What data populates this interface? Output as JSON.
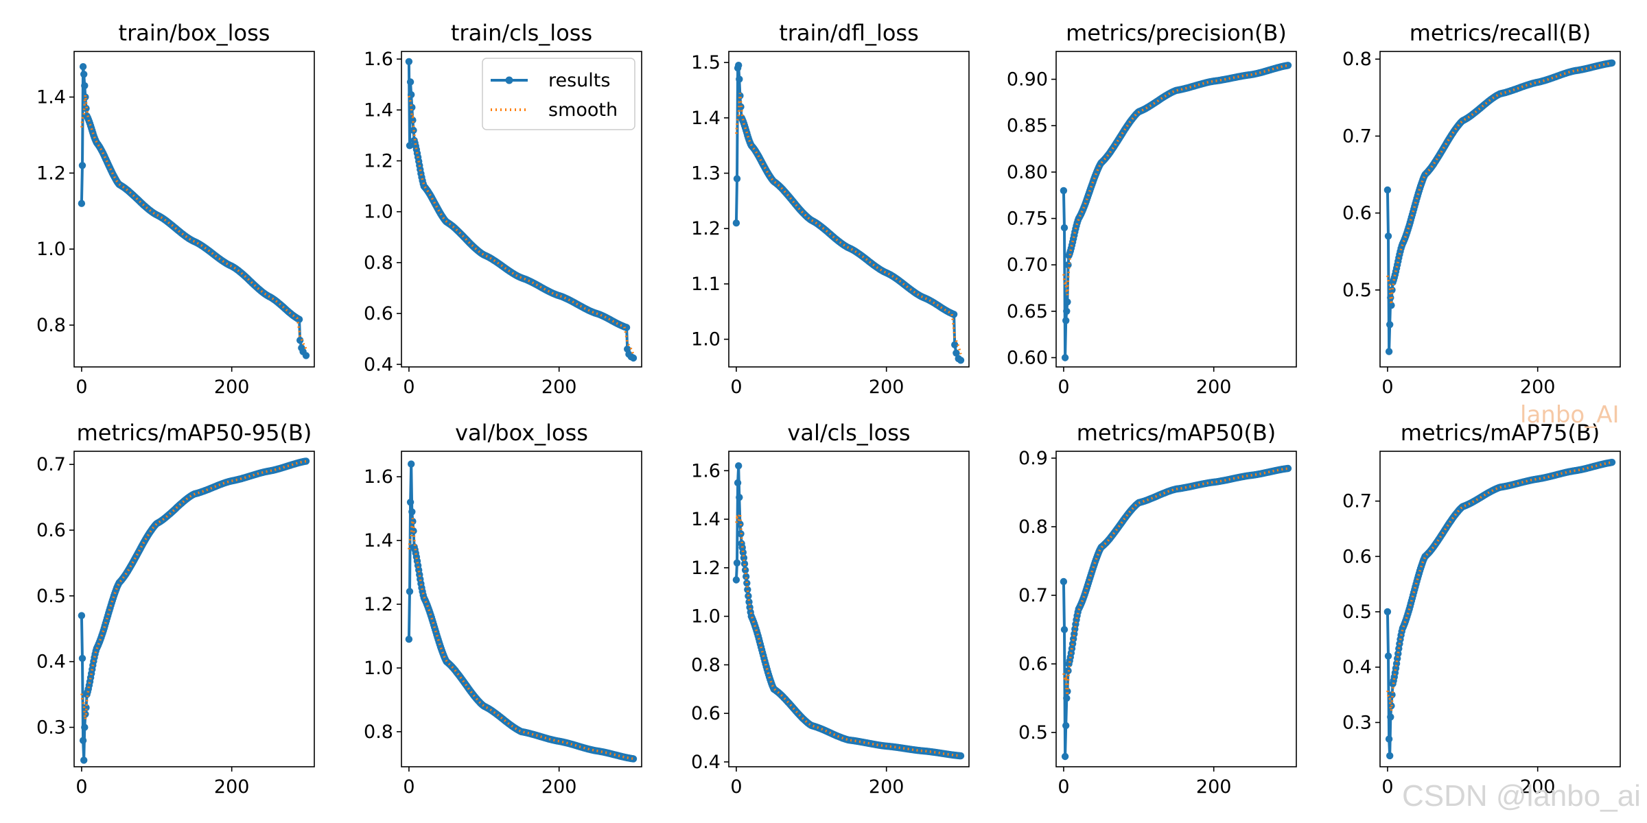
{
  "chart_data": [
    {
      "type": "line",
      "title": "train/box_loss",
      "x_label": "",
      "y_label": "",
      "xlim": [
        -10,
        310
      ],
      "ylim": [
        0.69,
        1.52
      ],
      "xticks": [
        0,
        200
      ],
      "yticks": [
        0.8,
        1.0,
        1.2,
        1.4
      ],
      "ytick_labels": [
        "0.8",
        "1.0",
        "1.2",
        "1.4"
      ],
      "epochs": 300,
      "start_values": [
        1.12,
        1.22,
        1.48,
        1.46,
        1.43,
        1.4,
        1.37,
        1.35
      ],
      "anchors": [
        [
          7,
          1.35
        ],
        [
          20,
          1.28
        ],
        [
          50,
          1.17
        ],
        [
          100,
          1.09
        ],
        [
          150,
          1.02
        ],
        [
          200,
          0.955
        ],
        [
          250,
          0.875
        ],
        [
          290,
          0.815
        ]
      ],
      "tail": [
        [
          291,
          0.76
        ],
        [
          293,
          0.74
        ],
        [
          295,
          0.73
        ],
        [
          299,
          0.72
        ]
      ]
    },
    {
      "type": "line",
      "title": "train/cls_loss",
      "x_label": "",
      "y_label": "",
      "xlim": [
        -10,
        310
      ],
      "ylim": [
        0.39,
        1.63
      ],
      "xticks": [
        0,
        200
      ],
      "yticks": [
        0.4,
        0.6,
        0.8,
        1.0,
        1.2,
        1.4,
        1.6
      ],
      "ytick_labels": [
        "0.4",
        "0.6",
        "0.8",
        "1.0",
        "1.2",
        "1.4",
        "1.6"
      ],
      "epochs": 300,
      "start_values": [
        1.59,
        1.26,
        1.51,
        1.46,
        1.41,
        1.36,
        1.32,
        1.28
      ],
      "anchors": [
        [
          7,
          1.28
        ],
        [
          20,
          1.1
        ],
        [
          50,
          0.96
        ],
        [
          100,
          0.83
        ],
        [
          150,
          0.74
        ],
        [
          200,
          0.67
        ],
        [
          250,
          0.6
        ],
        [
          290,
          0.545
        ]
      ],
      "tail": [
        [
          291,
          0.46
        ],
        [
          293,
          0.44
        ],
        [
          296,
          0.43
        ],
        [
          299,
          0.425
        ]
      ],
      "legend": [
        {
          "label": "results",
          "style": "solid-marker",
          "color": "#1f77b4"
        },
        {
          "label": "smooth",
          "style": "dotted",
          "color": "#ff7f0e"
        }
      ]
    },
    {
      "type": "line",
      "title": "train/dfl_loss",
      "x_label": "",
      "y_label": "",
      "xlim": [
        -10,
        310
      ],
      "ylim": [
        0.95,
        1.52
      ],
      "xticks": [
        0,
        200
      ],
      "yticks": [
        1.0,
        1.1,
        1.2,
        1.3,
        1.4,
        1.5
      ],
      "ytick_labels": [
        "1.0",
        "1.1",
        "1.2",
        "1.3",
        "1.4",
        "1.5"
      ],
      "epochs": 300,
      "start_values": [
        1.21,
        1.29,
        1.49,
        1.495,
        1.47,
        1.44,
        1.42,
        1.4
      ],
      "anchors": [
        [
          7,
          1.4
        ],
        [
          20,
          1.35
        ],
        [
          50,
          1.285
        ],
        [
          100,
          1.215
        ],
        [
          150,
          1.165
        ],
        [
          200,
          1.12
        ],
        [
          250,
          1.075
        ],
        [
          290,
          1.045
        ]
      ],
      "tail": [
        [
          291,
          0.99
        ],
        [
          293,
          0.975
        ],
        [
          296,
          0.965
        ],
        [
          299,
          0.962
        ]
      ]
    },
    {
      "type": "line",
      "title": "metrics/precision(B)",
      "x_label": "",
      "y_label": "",
      "xlim": [
        -10,
        310
      ],
      "ylim": [
        0.59,
        0.93
      ],
      "xticks": [
        0,
        200
      ],
      "yticks": [
        0.6,
        0.65,
        0.7,
        0.75,
        0.8,
        0.85,
        0.9
      ],
      "ytick_labels": [
        "0.60",
        "0.65",
        "0.70",
        "0.75",
        "0.80",
        "0.85",
        "0.90"
      ],
      "epochs": 300,
      "start_values": [
        0.78,
        0.74,
        0.6,
        0.64,
        0.65,
        0.66,
        0.7,
        0.71
      ],
      "anchors": [
        [
          7,
          0.71
        ],
        [
          20,
          0.75
        ],
        [
          50,
          0.81
        ],
        [
          100,
          0.865
        ],
        [
          150,
          0.888
        ],
        [
          200,
          0.898
        ],
        [
          250,
          0.905
        ],
        [
          299,
          0.915
        ]
      ],
      "tail": []
    },
    {
      "type": "line",
      "title": "metrics/recall(B)",
      "x_label": "",
      "y_label": "",
      "xlim": [
        -10,
        310
      ],
      "ylim": [
        0.4,
        0.81
      ],
      "xticks": [
        0,
        200
      ],
      "yticks": [
        0.5,
        0.6,
        0.7,
        0.8
      ],
      "ytick_labels": [
        "0.5",
        "0.6",
        "0.7",
        "0.8"
      ],
      "epochs": 300,
      "start_values": [
        0.63,
        0.57,
        0.42,
        0.455,
        0.49,
        0.48,
        0.5,
        0.51
      ],
      "anchors": [
        [
          7,
          0.51
        ],
        [
          20,
          0.56
        ],
        [
          50,
          0.65
        ],
        [
          100,
          0.72
        ],
        [
          150,
          0.755
        ],
        [
          200,
          0.77
        ],
        [
          250,
          0.785
        ],
        [
          299,
          0.795
        ]
      ],
      "tail": []
    },
    {
      "type": "line",
      "title": "metrics/mAP50-95(B)",
      "x_label": "",
      "y_label": "",
      "xlim": [
        -10,
        310
      ],
      "ylim": [
        0.24,
        0.72
      ],
      "xticks": [
        0,
        200
      ],
      "yticks": [
        0.3,
        0.4,
        0.5,
        0.6,
        0.7
      ],
      "ytick_labels": [
        "0.3",
        "0.4",
        "0.5",
        "0.6",
        "0.7"
      ],
      "epochs": 300,
      "start_values": [
        0.47,
        0.405,
        0.28,
        0.25,
        0.3,
        0.32,
        0.33,
        0.35
      ],
      "anchors": [
        [
          7,
          0.35
        ],
        [
          20,
          0.42
        ],
        [
          50,
          0.52
        ],
        [
          100,
          0.61
        ],
        [
          150,
          0.655
        ],
        [
          200,
          0.675
        ],
        [
          250,
          0.69
        ],
        [
          299,
          0.705
        ]
      ],
      "tail": []
    },
    {
      "type": "line",
      "title": "val/box_loss",
      "x_label": "",
      "y_label": "",
      "xlim": [
        -10,
        310
      ],
      "ylim": [
        0.69,
        1.68
      ],
      "xticks": [
        0,
        200
      ],
      "yticks": [
        0.8,
        1.0,
        1.2,
        1.4,
        1.6
      ],
      "ytick_labels": [
        "0.8",
        "1.0",
        "1.2",
        "1.4",
        "1.6"
      ],
      "epochs": 300,
      "start_values": [
        1.09,
        1.24,
        1.52,
        1.64,
        1.49,
        1.46,
        1.43,
        1.38
      ],
      "anchors": [
        [
          7,
          1.38
        ],
        [
          20,
          1.22
        ],
        [
          50,
          1.02
        ],
        [
          100,
          0.88
        ],
        [
          150,
          0.8
        ],
        [
          200,
          0.77
        ],
        [
          250,
          0.74
        ],
        [
          299,
          0.715
        ]
      ],
      "tail": []
    },
    {
      "type": "line",
      "title": "val/cls_loss",
      "x_label": "",
      "y_label": "",
      "xlim": [
        -10,
        310
      ],
      "ylim": [
        0.38,
        1.68
      ],
      "xticks": [
        0,
        200
      ],
      "yticks": [
        0.4,
        0.6,
        0.8,
        1.0,
        1.2,
        1.4,
        1.6
      ],
      "ytick_labels": [
        "0.4",
        "0.6",
        "0.8",
        "1.0",
        "1.2",
        "1.4",
        "1.6"
      ],
      "epochs": 300,
      "start_values": [
        1.15,
        1.22,
        1.55,
        1.62,
        1.49,
        1.38,
        1.34,
        1.3
      ],
      "anchors": [
        [
          7,
          1.3
        ],
        [
          20,
          1.0
        ],
        [
          50,
          0.7
        ],
        [
          100,
          0.55
        ],
        [
          150,
          0.49
        ],
        [
          200,
          0.465
        ],
        [
          250,
          0.445
        ],
        [
          299,
          0.425
        ]
      ],
      "tail": []
    },
    {
      "type": "line",
      "title": "metrics/mAP50(B)",
      "x_label": "",
      "y_label": "",
      "xlim": [
        -10,
        310
      ],
      "ylim": [
        0.45,
        0.91
      ],
      "xticks": [
        0,
        200
      ],
      "yticks": [
        0.5,
        0.6,
        0.7,
        0.8,
        0.9
      ],
      "ytick_labels": [
        "0.5",
        "0.6",
        "0.7",
        "0.8",
        "0.9"
      ],
      "epochs": 300,
      "start_values": [
        0.72,
        0.65,
        0.465,
        0.51,
        0.55,
        0.56,
        0.59,
        0.6
      ],
      "anchors": [
        [
          7,
          0.6
        ],
        [
          20,
          0.68
        ],
        [
          50,
          0.77
        ],
        [
          100,
          0.835
        ],
        [
          150,
          0.855
        ],
        [
          200,
          0.865
        ],
        [
          250,
          0.875
        ],
        [
          299,
          0.885
        ]
      ],
      "tail": []
    },
    {
      "type": "line",
      "title": "metrics/mAP75(B)",
      "x_label": "",
      "y_label": "",
      "xlim": [
        -10,
        310
      ],
      "ylim": [
        0.22,
        0.79
      ],
      "xticks": [
        0,
        200
      ],
      "yticks": [
        0.3,
        0.4,
        0.5,
        0.6,
        0.7
      ],
      "ytick_labels": [
        "0.3",
        "0.4",
        "0.5",
        "0.6",
        "0.7"
      ],
      "epochs": 300,
      "start_values": [
        0.5,
        0.42,
        0.27,
        0.24,
        0.31,
        0.33,
        0.35,
        0.37
      ],
      "anchors": [
        [
          7,
          0.37
        ],
        [
          20,
          0.47
        ],
        [
          50,
          0.6
        ],
        [
          100,
          0.69
        ],
        [
          150,
          0.725
        ],
        [
          200,
          0.74
        ],
        [
          250,
          0.755
        ],
        [
          299,
          0.77
        ]
      ],
      "tail": []
    }
  ],
  "colors": {
    "results": "#1f77b4",
    "smooth": "#ff7f0e",
    "watermark_orange": "#f6c9a6",
    "watermark_gray": "#d6d6d6"
  },
  "watermarks": {
    "top": "lanbo_AI",
    "bottom": "CSDN @lanbo_ai"
  }
}
